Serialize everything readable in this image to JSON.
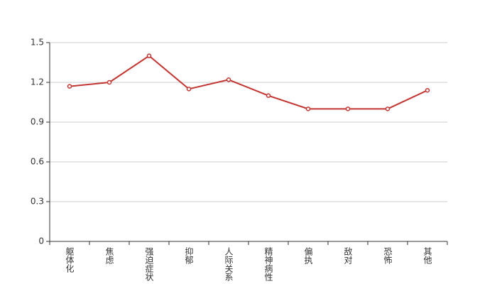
{
  "chart_data": {
    "type": "line",
    "categories": [
      "躯体化",
      "焦虑",
      "强迫症状",
      "抑郁",
      "人际关系",
      "精神病性",
      "偏执",
      "敌对",
      "恐怖",
      "其他"
    ],
    "series": [
      {
        "color": "#c23531",
        "values": [
          1.17,
          1.2,
          1.4,
          1.15,
          1.22,
          1.1,
          1.0,
          1.0,
          1.0,
          1.14
        ]
      }
    ],
    "ylim": [
      0,
      1.5
    ],
    "yticks": [
      0,
      0.3,
      0.6,
      0.9,
      1.2,
      1.5
    ],
    "grid": true
  }
}
